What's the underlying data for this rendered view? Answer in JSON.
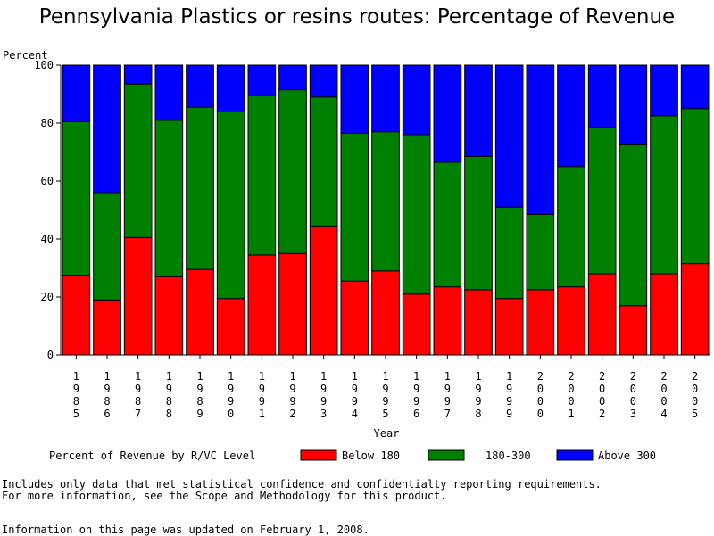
{
  "title": "Pennsylvania Plastics or resins routes: Percentage of Revenue",
  "footnotes": {
    "line1": "Includes only data that met statistical confidence and confidentialty reporting requirements.",
    "line2": "For more information, see the Scope and Methodology for this product.",
    "line3": "Information on this page was updated on February 1, 2008."
  },
  "legend": {
    "title": "Percent of Revenue by R/VC Level"
  },
  "chart_data": {
    "type": "bar",
    "stacked": true,
    "title": "Pennsylvania Plastics or resins routes: Percentage of Revenue",
    "xlabel": "Year",
    "ylabel": "Percent",
    "ylim": [
      0,
      100
    ],
    "yticks": [
      0,
      20,
      40,
      60,
      80,
      100
    ],
    "grid": false,
    "legend_position": "bottom",
    "categories": [
      "1985",
      "1986",
      "1987",
      "1988",
      "1989",
      "1990",
      "1991",
      "1992",
      "1993",
      "1994",
      "1995",
      "1996",
      "1997",
      "1998",
      "1999",
      "2000",
      "2001",
      "2002",
      "2003",
      "2004",
      "2005"
    ],
    "series": [
      {
        "name": "Below 180",
        "color": "#ff0000",
        "values": [
          27.5,
          19,
          40.5,
          27,
          29.5,
          19.5,
          34.5,
          35,
          44.5,
          25.5,
          29,
          21,
          23.5,
          22.5,
          19.5,
          22.5,
          23.5,
          28,
          17,
          28,
          31.5
        ]
      },
      {
        "name": "180-300",
        "color": "#008000",
        "values": [
          53,
          37,
          53,
          54,
          56,
          64.5,
          55,
          56.5,
          44.5,
          51,
          48,
          55,
          43,
          46,
          31.5,
          26,
          41.5,
          50.5,
          55.5,
          54.5,
          53.5
        ]
      },
      {
        "name": "Above 300",
        "color": "#0000ff",
        "values": [
          19.5,
          44,
          6.5,
          19,
          14.5,
          16,
          10.5,
          8.5,
          11,
          23.5,
          23,
          24,
          33.5,
          31.5,
          49,
          51.5,
          35,
          21.5,
          27.5,
          17.5,
          15
        ]
      }
    ]
  }
}
